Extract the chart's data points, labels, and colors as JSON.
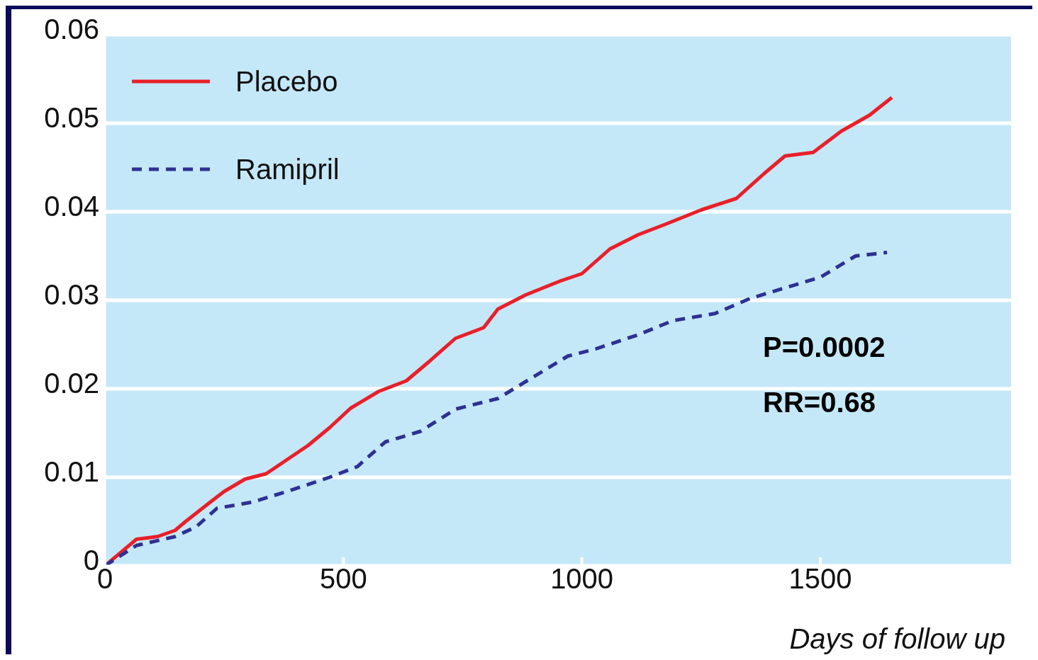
{
  "chart_data": {
    "type": "line",
    "xlabel": "Days of follow up",
    "xlim": [
      0,
      1900
    ],
    "xticks": [
      0,
      500,
      1000,
      1500
    ],
    "ylim": [
      0,
      0.06
    ],
    "yticks": [
      0,
      0.01,
      0.02,
      0.03,
      0.04,
      0.05,
      0.06
    ],
    "grid": "y",
    "legend": "top left",
    "marker": "none",
    "annotations": [
      "P=0.0002",
      "RR=0.68"
    ],
    "series": [
      {
        "name": "Placebo",
        "color": "#e8202a",
        "line_style": "solid",
        "x": [
          0,
          66,
          110,
          147,
          169,
          221,
          250,
          294,
          338,
          382,
          426,
          471,
          515,
          574,
          632,
          676,
          735,
          794,
          824,
          882,
          956,
          1000,
          1059,
          1118,
          1176,
          1250,
          1324,
          1382,
          1426,
          1485,
          1544,
          1603,
          1650
        ],
        "values": [
          0,
          0.003,
          0.0033,
          0.004,
          0.005,
          0.0072,
          0.0084,
          0.0098,
          0.0104,
          0.012,
          0.0136,
          0.0156,
          0.0178,
          0.0197,
          0.0209,
          0.0229,
          0.0257,
          0.0269,
          0.029,
          0.0306,
          0.0322,
          0.033,
          0.0358,
          0.0374,
          0.0386,
          0.0402,
          0.0415,
          0.0443,
          0.0463,
          0.0467,
          0.0491,
          0.0509,
          0.0529
        ]
      },
      {
        "name": "Ramipril",
        "color": "#2e3192",
        "line_style": "dashed",
        "x": [
          0,
          66,
          147,
          191,
          235,
          309,
          382,
          471,
          529,
          588,
          662,
          735,
          824,
          897,
          971,
          1029,
          1118,
          1191,
          1279,
          1353,
          1426,
          1500,
          1574,
          1640
        ],
        "values": [
          0,
          0.0023,
          0.0033,
          0.0044,
          0.0065,
          0.0072,
          0.0084,
          0.01,
          0.0112,
          0.014,
          0.0152,
          0.0177,
          0.0189,
          0.0213,
          0.0237,
          0.0245,
          0.0261,
          0.0277,
          0.0285,
          0.0302,
          0.0314,
          0.0326,
          0.035,
          0.0354
        ]
      }
    ]
  }
}
